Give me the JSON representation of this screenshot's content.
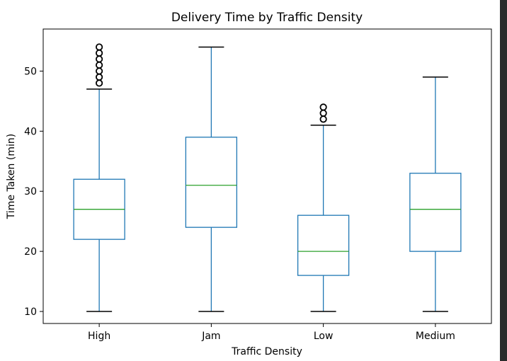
{
  "chart_data": {
    "type": "box",
    "title": "Delivery Time by Traffic Density",
    "xlabel": "Traffic Density",
    "ylabel": "Time Taken (min)",
    "categories": [
      "High",
      "Jam",
      "Low",
      "Medium"
    ],
    "ylim": [
      8,
      57
    ],
    "yticks": [
      10,
      20,
      30,
      40,
      50
    ],
    "grid": false,
    "colors": {
      "box": "#1f77b4",
      "median": "#2ca02c",
      "flier": "#000000",
      "cap": "#000000"
    },
    "boxes": [
      {
        "category": "High",
        "whisker_low": 10,
        "q1": 22,
        "median": 27,
        "q3": 32,
        "whisker_high": 47,
        "fliers": [
          48,
          49,
          50,
          51,
          52,
          53,
          54
        ]
      },
      {
        "category": "Jam",
        "whisker_low": 10,
        "q1": 24,
        "median": 31,
        "q3": 39,
        "whisker_high": 54,
        "fliers": []
      },
      {
        "category": "Low",
        "whisker_low": 10,
        "q1": 16,
        "median": 20,
        "q3": 26,
        "whisker_high": 41,
        "fliers": [
          42,
          43,
          44
        ]
      },
      {
        "category": "Medium",
        "whisker_low": 10,
        "q1": 20,
        "median": 27,
        "q3": 33,
        "whisker_high": 49,
        "fliers": []
      }
    ]
  }
}
